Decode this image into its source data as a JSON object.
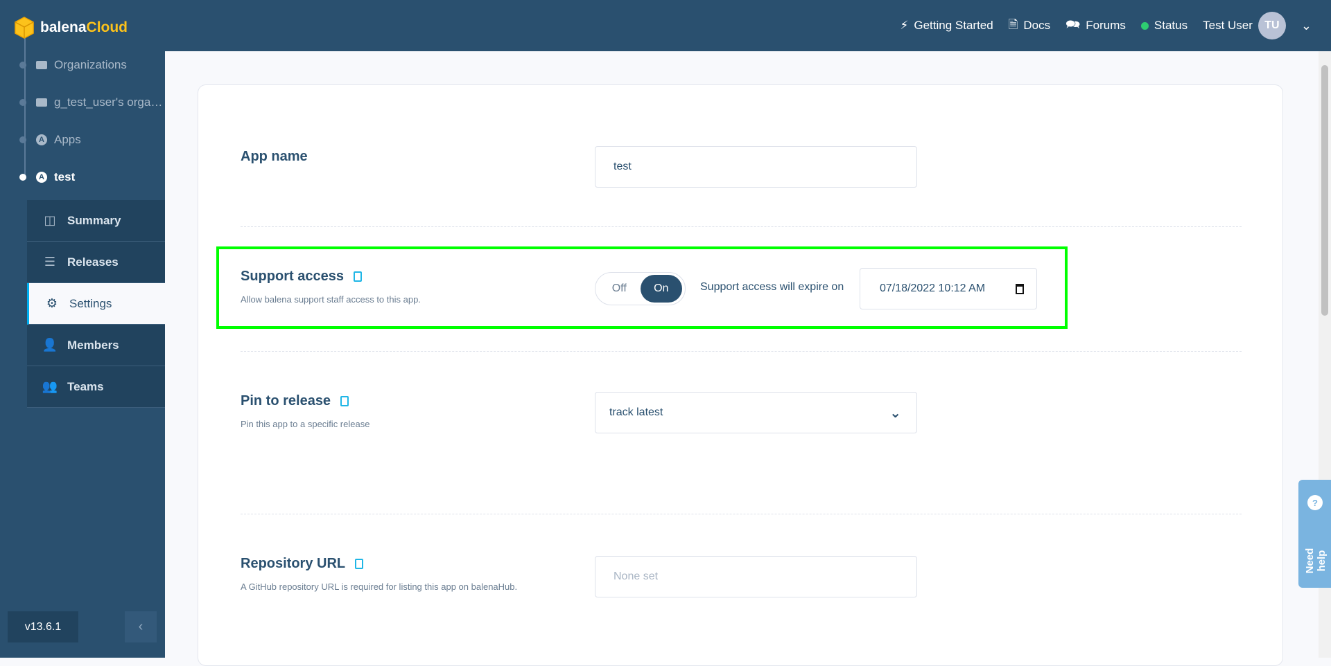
{
  "brand": {
    "name_a": "balena",
    "name_b": "Cloud"
  },
  "breadcrumbs": [
    {
      "label": "Organizations"
    },
    {
      "label": "g_test_user's orga…"
    },
    {
      "label": "Apps"
    },
    {
      "label": "test"
    }
  ],
  "submenu": [
    {
      "label": "Summary"
    },
    {
      "label": "Releases"
    },
    {
      "label": "Settings",
      "active": true
    },
    {
      "label": "Members"
    },
    {
      "label": "Teams"
    }
  ],
  "version": "v13.6.1",
  "header": {
    "getting_started": "Getting Started",
    "docs": "Docs",
    "forums": "Forums",
    "status": "Status",
    "user": "Test User",
    "initials": "TU"
  },
  "settings": {
    "app_name": {
      "label": "App name",
      "value": "test"
    },
    "support": {
      "label": "Support access",
      "description": "Allow balena support staff access to this app.",
      "off": "Off",
      "on": "On",
      "state": "On",
      "expire_label": "Support access will expire on",
      "expire_value": "07/18/2022 10:12 AM"
    },
    "pin": {
      "label": "Pin to release",
      "description": "Pin this app to a specific release",
      "value": "track latest"
    },
    "repo": {
      "label": "Repository URL",
      "description": "A GitHub repository URL is required for listing this app on balenaHub.",
      "placeholder": "None set"
    }
  },
  "help": {
    "label": "Need help"
  },
  "colors": {
    "primary": "#2a506f",
    "accent": "#00aeef",
    "logo": "#fcc21b",
    "status": "#2ecc71",
    "highlight": "#00ff00"
  }
}
